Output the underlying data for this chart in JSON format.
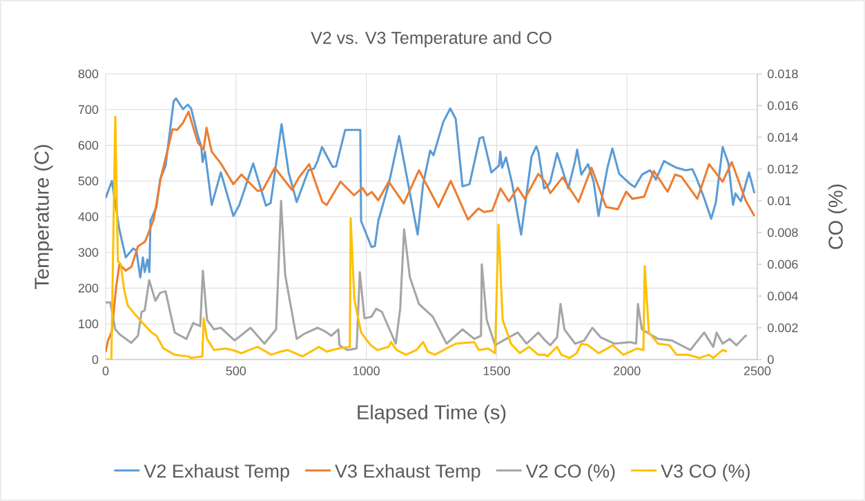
{
  "chart_data": {
    "type": "line",
    "title": "V2 vs. V3 Temperature and CO",
    "xlabel": "Elapsed Time (s)",
    "ylabel": "Temperature (C)",
    "y2label": "CO (%)",
    "xlim": [
      0,
      2500
    ],
    "xticks": [
      0,
      500,
      1000,
      1500,
      2000,
      2500
    ],
    "ylim": [
      0,
      800
    ],
    "yticks": [
      0,
      100,
      200,
      300,
      400,
      500,
      600,
      700,
      800
    ],
    "y2lim": [
      0,
      0.018
    ],
    "y2ticks": [
      0,
      0.002,
      0.004,
      0.006,
      0.008,
      0.01,
      0.012,
      0.014,
      0.016,
      0.018
    ],
    "grid": true,
    "legend": "bottom",
    "series": [
      {
        "name": "V2 Exhaust Temp",
        "color": "#5b9bd5",
        "x": [
          0,
          24,
          53,
          77,
          106,
          118,
          133,
          143,
          150,
          160,
          168,
          172,
          195,
          209,
          230,
          261,
          270,
          297,
          315,
          328,
          354,
          367,
          372,
          381,
          407,
          442,
          490,
          513,
          566,
          615,
          633,
          675,
          702,
          733,
          778,
          800,
          813,
          830,
          871,
          884,
          919,
          977,
          980,
          1020,
          1033,
          1046,
          1086,
          1126,
          1149,
          1197,
          1218,
          1245,
          1258,
          1295,
          1322,
          1343,
          1369,
          1396,
          1435,
          1448,
          1480,
          1509,
          1514,
          1521,
          1536,
          1560,
          1594,
          1634,
          1652,
          1660,
          1682,
          1695,
          1706,
          1732,
          1775,
          1801,
          1809,
          1825,
          1851,
          1872,
          1891,
          1925,
          1944,
          1970,
          2013,
          2030,
          2058,
          2089,
          2111,
          2142,
          2163,
          2190,
          2225,
          2251,
          2269,
          2296,
          2323,
          2341,
          2367,
          2389,
          2407,
          2416,
          2437,
          2468,
          2489
        ],
        "values": [
          452,
          500,
          363,
          286,
          311,
          305,
          230,
          286,
          245,
          280,
          245,
          388,
          427,
          504,
          543,
          723,
          731,
          701,
          714,
          703,
          626,
          597,
          553,
          582,
          433,
          524,
          402,
          433,
          549,
          431,
          438,
          659,
          524,
          441,
          530,
          535,
          556,
          595,
          539,
          541,
          643,
          643,
          388,
          315,
          318,
          388,
          491,
          626,
          537,
          350,
          491,
          585,
          572,
          665,
          703,
          674,
          485,
          491,
          620,
          623,
          524,
          543,
          582,
          537,
          566,
          491,
          350,
          568,
          597,
          582,
          479,
          485,
          498,
          578,
          479,
          556,
          588,
          518,
          547,
          498,
          402,
          537,
          591,
          520,
          491,
          483,
          518,
          530,
          504,
          556,
          547,
          537,
          530,
          533,
          504,
          452,
          394,
          440,
          595,
          550,
          433,
          465,
          443,
          524,
          466
        ]
      },
      {
        "name": "V3 Exhaust Temp",
        "color": "#ed7d31",
        "x": [
          0,
          9,
          24,
          40,
          53,
          77,
          99,
          124,
          151,
          169,
          185,
          212,
          257,
          274,
          297,
          318,
          354,
          376,
          387,
          407,
          442,
          490,
          521,
          583,
          603,
          649,
          715,
          742,
          781,
          813,
          832,
          848,
          901,
          953,
          985,
          1003,
          1021,
          1046,
          1086,
          1144,
          1202,
          1277,
          1324,
          1390,
          1430,
          1452,
          1483,
          1515,
          1547,
          1581,
          1608,
          1660,
          1686,
          1706,
          1753,
          1814,
          1864,
          1920,
          1965,
          1997,
          2021,
          2066,
          2103,
          2156,
          2185,
          2209,
          2270,
          2315,
          2367,
          2402,
          2455,
          2489
        ],
        "values": [
          21,
          53,
          79,
          201,
          267,
          249,
          260,
          317,
          330,
          363,
          394,
          510,
          645,
          643,
          663,
          694,
          607,
          588,
          649,
          582,
          549,
          491,
          518,
          472,
          475,
          537,
          475,
          510,
          547,
          479,
          441,
          433,
          498,
          460,
          481,
          460,
          469,
          446,
          498,
          437,
          530,
          427,
          500,
          392,
          423,
          413,
          417,
          479,
          443,
          481,
          450,
          520,
          498,
          466,
          510,
          441,
          537,
          427,
          421,
          470,
          450,
          456,
          528,
          470,
          518,
          512,
          450,
          547,
          498,
          553,
          446,
          402
        ]
      },
      {
        "name": "V2 CO (%)",
        "color": "#a5a5a5",
        "axis": "y2",
        "x": [
          0,
          18,
          37,
          53,
          98,
          124,
          138,
          150,
          167,
          191,
          209,
          230,
          265,
          310,
          336,
          363,
          373,
          389,
          416,
          442,
          495,
          556,
          609,
          654,
          673,
          689,
          733,
          760,
          813,
          839,
          866,
          893,
          897,
          927,
          963,
          975,
          993,
          1020,
          1038,
          1060,
          1113,
          1130,
          1145,
          1167,
          1202,
          1255,
          1308,
          1369,
          1414,
          1440,
          1443,
          1462,
          1494,
          1536,
          1581,
          1615,
          1660,
          1686,
          1706,
          1732,
          1745,
          1760,
          1801,
          1836,
          1867,
          1899,
          1952,
          2013,
          2035,
          2042,
          2057,
          2119,
          2172,
          2243,
          2296,
          2331,
          2344,
          2367,
          2394,
          2420,
          2455,
          2460
        ],
        "values": [
          0.0036,
          0.0036,
          0.0019,
          0.0016,
          0.00105,
          0.0015,
          0.003,
          0.0031,
          0.005,
          0.0037,
          0.0042,
          0.0043,
          0.0017,
          0.0013,
          0.0023,
          0.0021,
          0.0056,
          0.0025,
          0.0019,
          0.002,
          0.0012,
          0.002,
          0.001,
          0.0019,
          0.01,
          0.0053,
          0.0013,
          0.0016,
          0.002,
          0.0018,
          0.0015,
          0.0019,
          0.0009,
          0.0006,
          0.0007,
          0.0055,
          0.0026,
          0.0027,
          0.0032,
          0.003,
          0.001,
          0.0032,
          0.0082,
          0.0052,
          0.0035,
          0.0027,
          0.001,
          0.0019,
          0.0013,
          0.0015,
          0.006,
          0.0025,
          0.0009,
          0.0013,
          0.0017,
          0.001,
          0.0017,
          0.0012,
          0.0009,
          0.0014,
          0.0035,
          0.0019,
          0.001,
          0.0012,
          0.002,
          0.0014,
          0.001,
          0.0011,
          0.001,
          0.0035,
          0.0019,
          0.0013,
          0.0012,
          0.0006,
          0.0017,
          0.0008,
          0.0017,
          0.001,
          0.0013,
          0.0009,
          0.0015,
          0.0015
        ]
      },
      {
        "name": "V3 CO (%)",
        "color": "#ffc000",
        "axis": "y2",
        "x": [
          0,
          22,
          37,
          47,
          58,
          71,
          85,
          115,
          142,
          177,
          195,
          222,
          265,
          318,
          327,
          371,
          376,
          389,
          416,
          460,
          487,
          521,
          566,
          583,
          636,
          671,
          698,
          755,
          777,
          818,
          848,
          893,
          937,
          940,
          954,
          980,
          1017,
          1043,
          1086,
          1095,
          1116,
          1152,
          1192,
          1218,
          1236,
          1263,
          1308,
          1343,
          1414,
          1432,
          1467,
          1494,
          1507,
          1523,
          1555,
          1589,
          1624,
          1660,
          1686,
          1695,
          1732,
          1748,
          1780,
          1807,
          1825,
          1851,
          1891,
          1925,
          1946,
          1986,
          2013,
          2039,
          2063,
          2068,
          2084,
          2119,
          2163,
          2190,
          2234,
          2278,
          2314,
          2331,
          2367,
          2384
        ],
        "values": [
          0,
          0,
          0.0153,
          0.0062,
          0.006,
          0.0044,
          0.0034,
          0.0028,
          0.0023,
          0.0017,
          0.0015,
          0.0007,
          0.0003,
          0.0002,
          0.0001,
          0.0002,
          0.0026,
          0.0013,
          0.0006,
          0.0007,
          0.0006,
          0.0004,
          0.0007,
          0.0008,
          0.0003,
          0.0005,
          0.0006,
          0.0002,
          0.0004,
          0.0008,
          0.0005,
          0.0007,
          0.0008,
          0.0089,
          0.0038,
          0.0017,
          0.0009,
          0.0006,
          0.0008,
          0.0011,
          0.0006,
          0.0003,
          0.0006,
          0.0011,
          0.0005,
          0.0003,
          0.0007,
          0.001,
          0.0011,
          0.0006,
          0.0007,
          0.0004,
          0.0085,
          0.0025,
          0.001,
          0.0004,
          0.0008,
          0.0003,
          0.0003,
          0.0002,
          0.0008,
          0.0003,
          0.0001,
          0.0004,
          0.001,
          0.0009,
          0.0004,
          0.0007,
          0.0009,
          0.0003,
          0.0005,
          0.0007,
          0.0006,
          0.0059,
          0.0017,
          0.001,
          0.0009,
          0.0003,
          0.0003,
          0.0001,
          0.0003,
          0.0001,
          0.0006,
          0.0005
        ]
      }
    ]
  }
}
